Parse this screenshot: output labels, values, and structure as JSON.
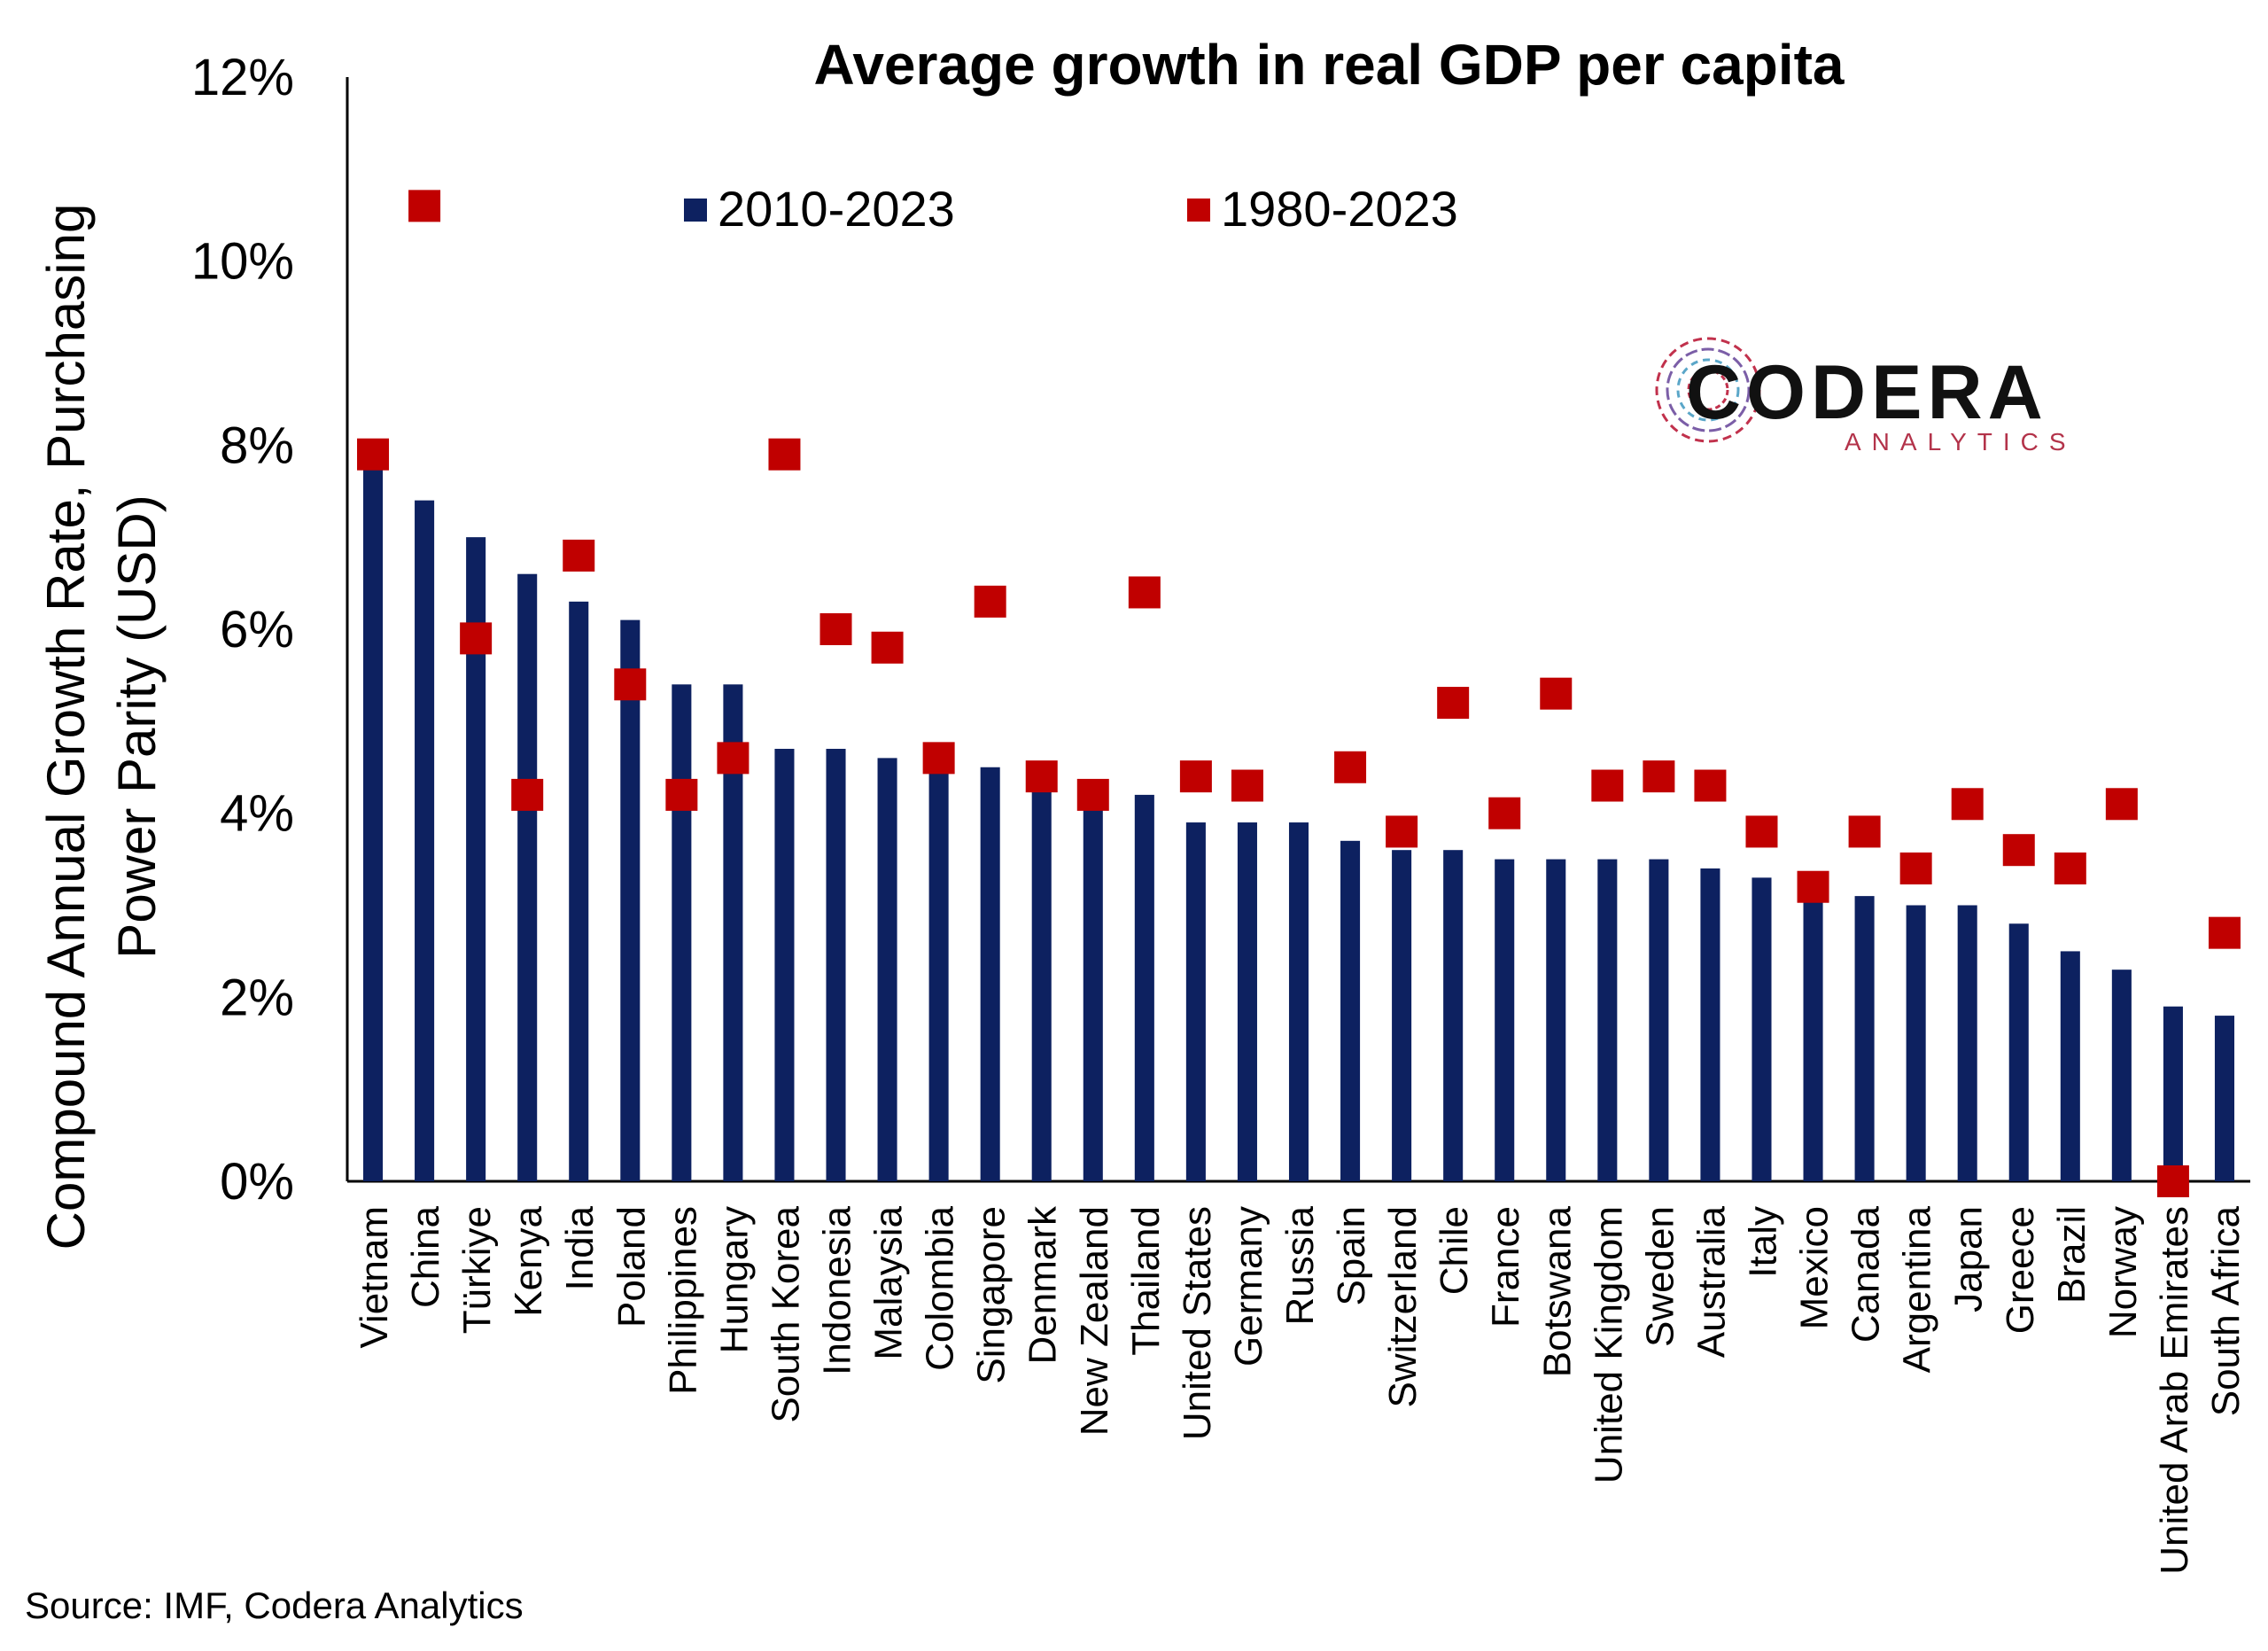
{
  "chart_data": {
    "type": "bar",
    "title": "Average growth in real GDP per capita",
    "ylabel_lines": [
      "Compound Annual Growth Rate, Purchasing",
      "Power Parity (USD)"
    ],
    "ylim": [
      0,
      12
    ],
    "yticks": [
      "0%",
      "2%",
      "4%",
      "6%",
      "8%",
      "10%",
      "12%"
    ],
    "legend_position": "top",
    "categories": [
      "Vietnam",
      "China",
      "Türkiye",
      "Kenya",
      "India",
      "Poland",
      "Philippines",
      "Hungary",
      "South Korea",
      "Indonesia",
      "Malaysia",
      "Colombia",
      "Singapore",
      "Denmark",
      "New Zealand",
      "Thailand",
      "United States",
      "Germany",
      "Russia",
      "Spain",
      "Switzerland",
      "Chile",
      "France",
      "Botswana",
      "United Kingdom",
      "Sweden",
      "Australia",
      "Italy",
      "Mexico",
      "Canada",
      "Argentina",
      "Japan",
      "Greece",
      "Brazil",
      "Norway",
      "United Arab Emirates",
      "South Africa"
    ],
    "series": [
      {
        "name": "2010-2023",
        "kind": "bar",
        "color": "#0d2160",
        "values": [
          7.8,
          7.4,
          7.0,
          6.6,
          6.3,
          6.1,
          5.4,
          5.4,
          4.7,
          4.7,
          4.6,
          4.5,
          4.5,
          4.3,
          4.2,
          4.2,
          3.9,
          3.9,
          3.9,
          3.7,
          3.6,
          3.6,
          3.5,
          3.5,
          3.5,
          3.5,
          3.4,
          3.3,
          3.1,
          3.1,
          3.0,
          3.0,
          2.8,
          2.5,
          2.3,
          1.9,
          1.8
        ]
      },
      {
        "name": "1980-2023",
        "kind": "marker",
        "color": "#c00000",
        "values": [
          7.9,
          10.6,
          5.9,
          4.2,
          6.8,
          5.4,
          4.2,
          4.6,
          7.9,
          6.0,
          5.8,
          4.6,
          6.3,
          4.4,
          4.2,
          6.4,
          4.4,
          4.3,
          null,
          4.5,
          3.8,
          5.2,
          4.0,
          5.3,
          4.3,
          4.4,
          4.3,
          3.8,
          3.2,
          3.8,
          3.4,
          4.1,
          3.6,
          3.4,
          4.1,
          0.0,
          2.7
        ]
      }
    ]
  },
  "logo": {
    "name": "CODERA",
    "sub": "ANALYTICS",
    "icon": "codera-logo-icon"
  },
  "source_text": "Source: IMF, Codera Analytics"
}
